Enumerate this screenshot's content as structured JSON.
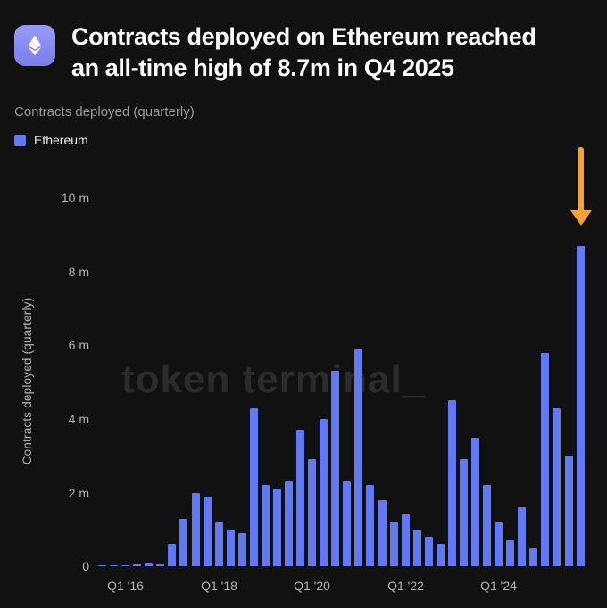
{
  "header": {
    "title_line1": "Contracts deployed on Ethereum reached",
    "title_line2": "an all-time high of 8.7m in Q4 2025"
  },
  "subtitle": "Contracts deployed (quarterly)",
  "legend": {
    "label": "Ethereum",
    "color": "#6379F1"
  },
  "watermark": "token terminal_",
  "colors": {
    "background": "#111111",
    "bar": "#6379F1",
    "arrow": "#F2A13C",
    "logo": "#8185EE",
    "axis_text": "#b4b4b4"
  },
  "chart_data": {
    "type": "bar",
    "title": "Contracts deployed (quarterly)",
    "series_name": "Ethereum",
    "ylabel": "Contracts deployed (quarterly)",
    "ylim": [
      0,
      10
    ],
    "grid": false,
    "legend_position": "top-left",
    "bar_color": "#6379F1",
    "categories": [
      "Q3 '15",
      "Q4 '15",
      "Q1 '16",
      "Q2 '16",
      "Q3 '16",
      "Q4 '16",
      "Q1 '17",
      "Q2 '17",
      "Q3 '17",
      "Q4 '17",
      "Q1 '18",
      "Q2 '18",
      "Q3 '18",
      "Q4 '18",
      "Q1 '19",
      "Q2 '19",
      "Q3 '19",
      "Q4 '19",
      "Q1 '20",
      "Q2 '20",
      "Q3 '20",
      "Q4 '20",
      "Q1 '21",
      "Q2 '21",
      "Q3 '21",
      "Q4 '21",
      "Q1 '22",
      "Q2 '22",
      "Q3 '22",
      "Q4 '22",
      "Q1 '23",
      "Q2 '23",
      "Q3 '23",
      "Q4 '23",
      "Q1 '24",
      "Q2 '24",
      "Q3 '24",
      "Q4 '24",
      "Q1 '25",
      "Q2 '25",
      "Q3 '25",
      "Q4 '25"
    ],
    "values": [
      0.02,
      0.03,
      0.03,
      0.05,
      0.08,
      0.06,
      0.6,
      1.3,
      2.0,
      1.9,
      1.2,
      1.0,
      0.9,
      4.3,
      2.2,
      2.1,
      2.3,
      3.7,
      2.9,
      4.0,
      5.3,
      2.3,
      5.9,
      2.2,
      1.8,
      1.2,
      1.4,
      1.0,
      0.8,
      0.6,
      4.5,
      2.9,
      3.5,
      2.2,
      1.2,
      0.7,
      1.6,
      0.5,
      5.8,
      4.3,
      3.0,
      8.7
    ],
    "yticks": [
      {
        "value": 10,
        "label": "10 m"
      },
      {
        "value": 8,
        "label": "8 m"
      },
      {
        "value": 6,
        "label": "6 m"
      },
      {
        "value": 4,
        "label": "4 m"
      },
      {
        "value": 2,
        "label": "2 m"
      },
      {
        "value": 0,
        "label": "0"
      }
    ],
    "xticks": [
      {
        "index": 2,
        "label": "Q1 '16"
      },
      {
        "index": 10,
        "label": "Q1 '18"
      },
      {
        "index": 18,
        "label": "Q1 '20"
      },
      {
        "index": 26,
        "label": "Q1 '22"
      },
      {
        "index": 34,
        "label": "Q1 '24"
      }
    ],
    "annotation": {
      "type": "arrow-down",
      "target_category": "Q4 '25",
      "target_value": 8.7,
      "color": "#F2A13C"
    }
  }
}
